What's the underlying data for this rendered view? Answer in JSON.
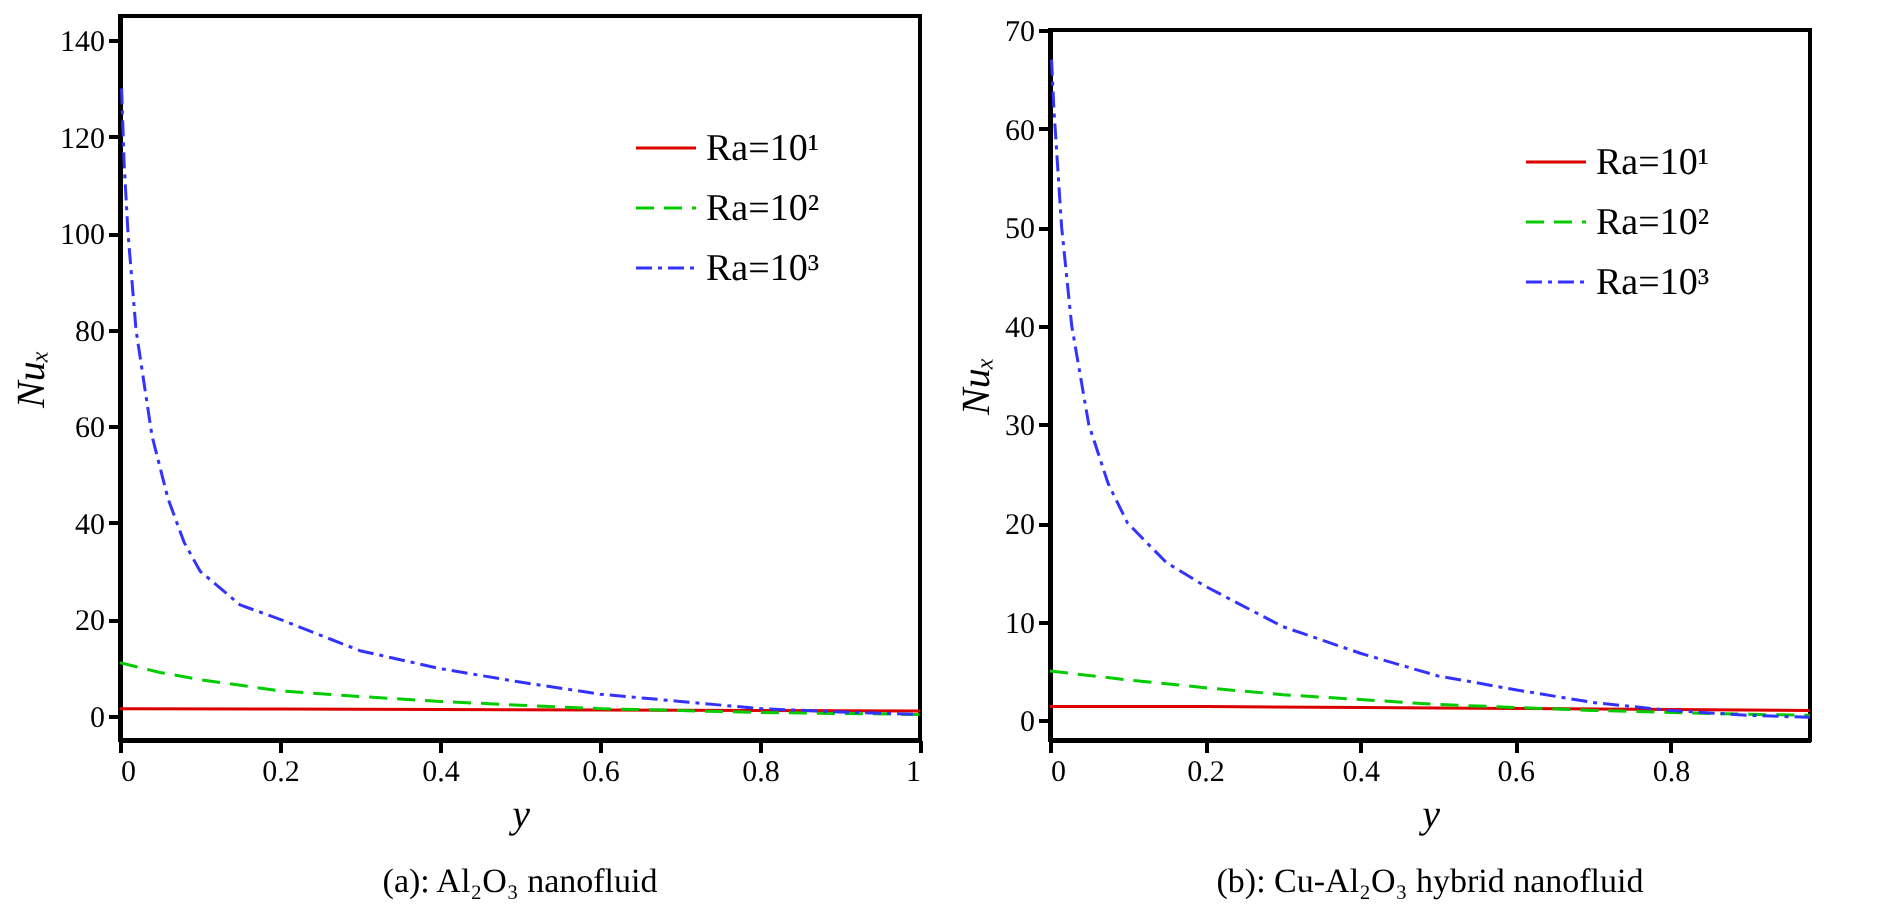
{
  "chart_data": [
    {
      "type": "line",
      "title": "(a): Al₂O₃ nanofluid",
      "xlabel": "y",
      "ylabel": "Nuₓ",
      "xlim": [
        0,
        1
      ],
      "ylim": [
        -5,
        145
      ],
      "xticks": [
        0,
        0.2,
        0.4,
        0.6,
        0.8,
        1
      ],
      "yticks": [
        0,
        20,
        40,
        60,
        80,
        100,
        120,
        140
      ],
      "legend": "top right",
      "grid": false,
      "series": [
        {
          "name": "Ra=10¹",
          "color": "#dd0000",
          "line_style": "solid",
          "x": [
            0,
            0.2,
            0.4,
            0.6,
            0.8,
            1
          ],
          "values": [
            1.5,
            1.4,
            1.3,
            1.2,
            1.1,
            1.0
          ]
        },
        {
          "name": "Ra=10²",
          "color": "#00cc00",
          "line_style": "dashed",
          "x": [
            0,
            0.05,
            0.1,
            0.2,
            0.3,
            0.4,
            0.5,
            0.6,
            0.7,
            0.8,
            0.9,
            1
          ],
          "values": [
            11,
            9,
            7.5,
            5.2,
            4,
            3,
            2.2,
            1.5,
            1.1,
            0.7,
            0.5,
            0.3
          ]
        },
        {
          "name": "Ra=10³",
          "color": "#3333ff",
          "line_style": "dashdot",
          "x": [
            0.002,
            0.005,
            0.01,
            0.02,
            0.04,
            0.06,
            0.08,
            0.1,
            0.15,
            0.2,
            0.3,
            0.4,
            0.5,
            0.6,
            0.7,
            0.8,
            0.9,
            1
          ],
          "values": [
            130,
            115,
            100,
            80,
            58,
            45,
            36,
            30,
            23,
            20,
            13.5,
            9.8,
            7,
            4.5,
            3,
            1.5,
            0.8,
            0.3
          ]
        }
      ]
    },
    {
      "type": "line",
      "title": "(b): Cu-Al₂O₃ hybrid nanofluid",
      "xlabel": "y",
      "ylabel": "Nuₓ",
      "xlim": [
        0,
        0.98
      ],
      "ylim": [
        -2,
        70
      ],
      "xticks": [
        0,
        0.2,
        0.4,
        0.6,
        0.8
      ],
      "yticks": [
        0,
        10,
        20,
        30,
        40,
        50,
        60,
        70
      ],
      "legend": "top right",
      "grid": false,
      "series": [
        {
          "name": "Ra=10¹",
          "color": "#dd0000",
          "line_style": "solid",
          "x": [
            0,
            0.2,
            0.4,
            0.6,
            0.8,
            0.98
          ],
          "values": [
            1.4,
            1.4,
            1.3,
            1.2,
            1.1,
            1.0
          ]
        },
        {
          "name": "Ra=10²",
          "color": "#00cc00",
          "line_style": "dashed",
          "x": [
            0,
            0.1,
            0.2,
            0.3,
            0.4,
            0.5,
            0.6,
            0.7,
            0.8,
            0.9,
            0.98
          ],
          "values": [
            5,
            4.1,
            3.3,
            2.6,
            2.1,
            1.6,
            1.3,
            1,
            0.8,
            0.6,
            0.5
          ]
        },
        {
          "name": "Ra=10³",
          "color": "#3333ff",
          "line_style": "dashdot",
          "x": [
            0.002,
            0.005,
            0.01,
            0.015,
            0.028,
            0.05,
            0.075,
            0.1,
            0.15,
            0.2,
            0.3,
            0.4,
            0.5,
            0.6,
            0.7,
            0.8,
            0.9,
            0.98
          ],
          "values": [
            67,
            62,
            56,
            50,
            40,
            30,
            24,
            20,
            16,
            13.6,
            9.5,
            6.8,
            4.5,
            3.1,
            1.8,
            1,
            0.5,
            0.3
          ]
        }
      ]
    }
  ]
}
